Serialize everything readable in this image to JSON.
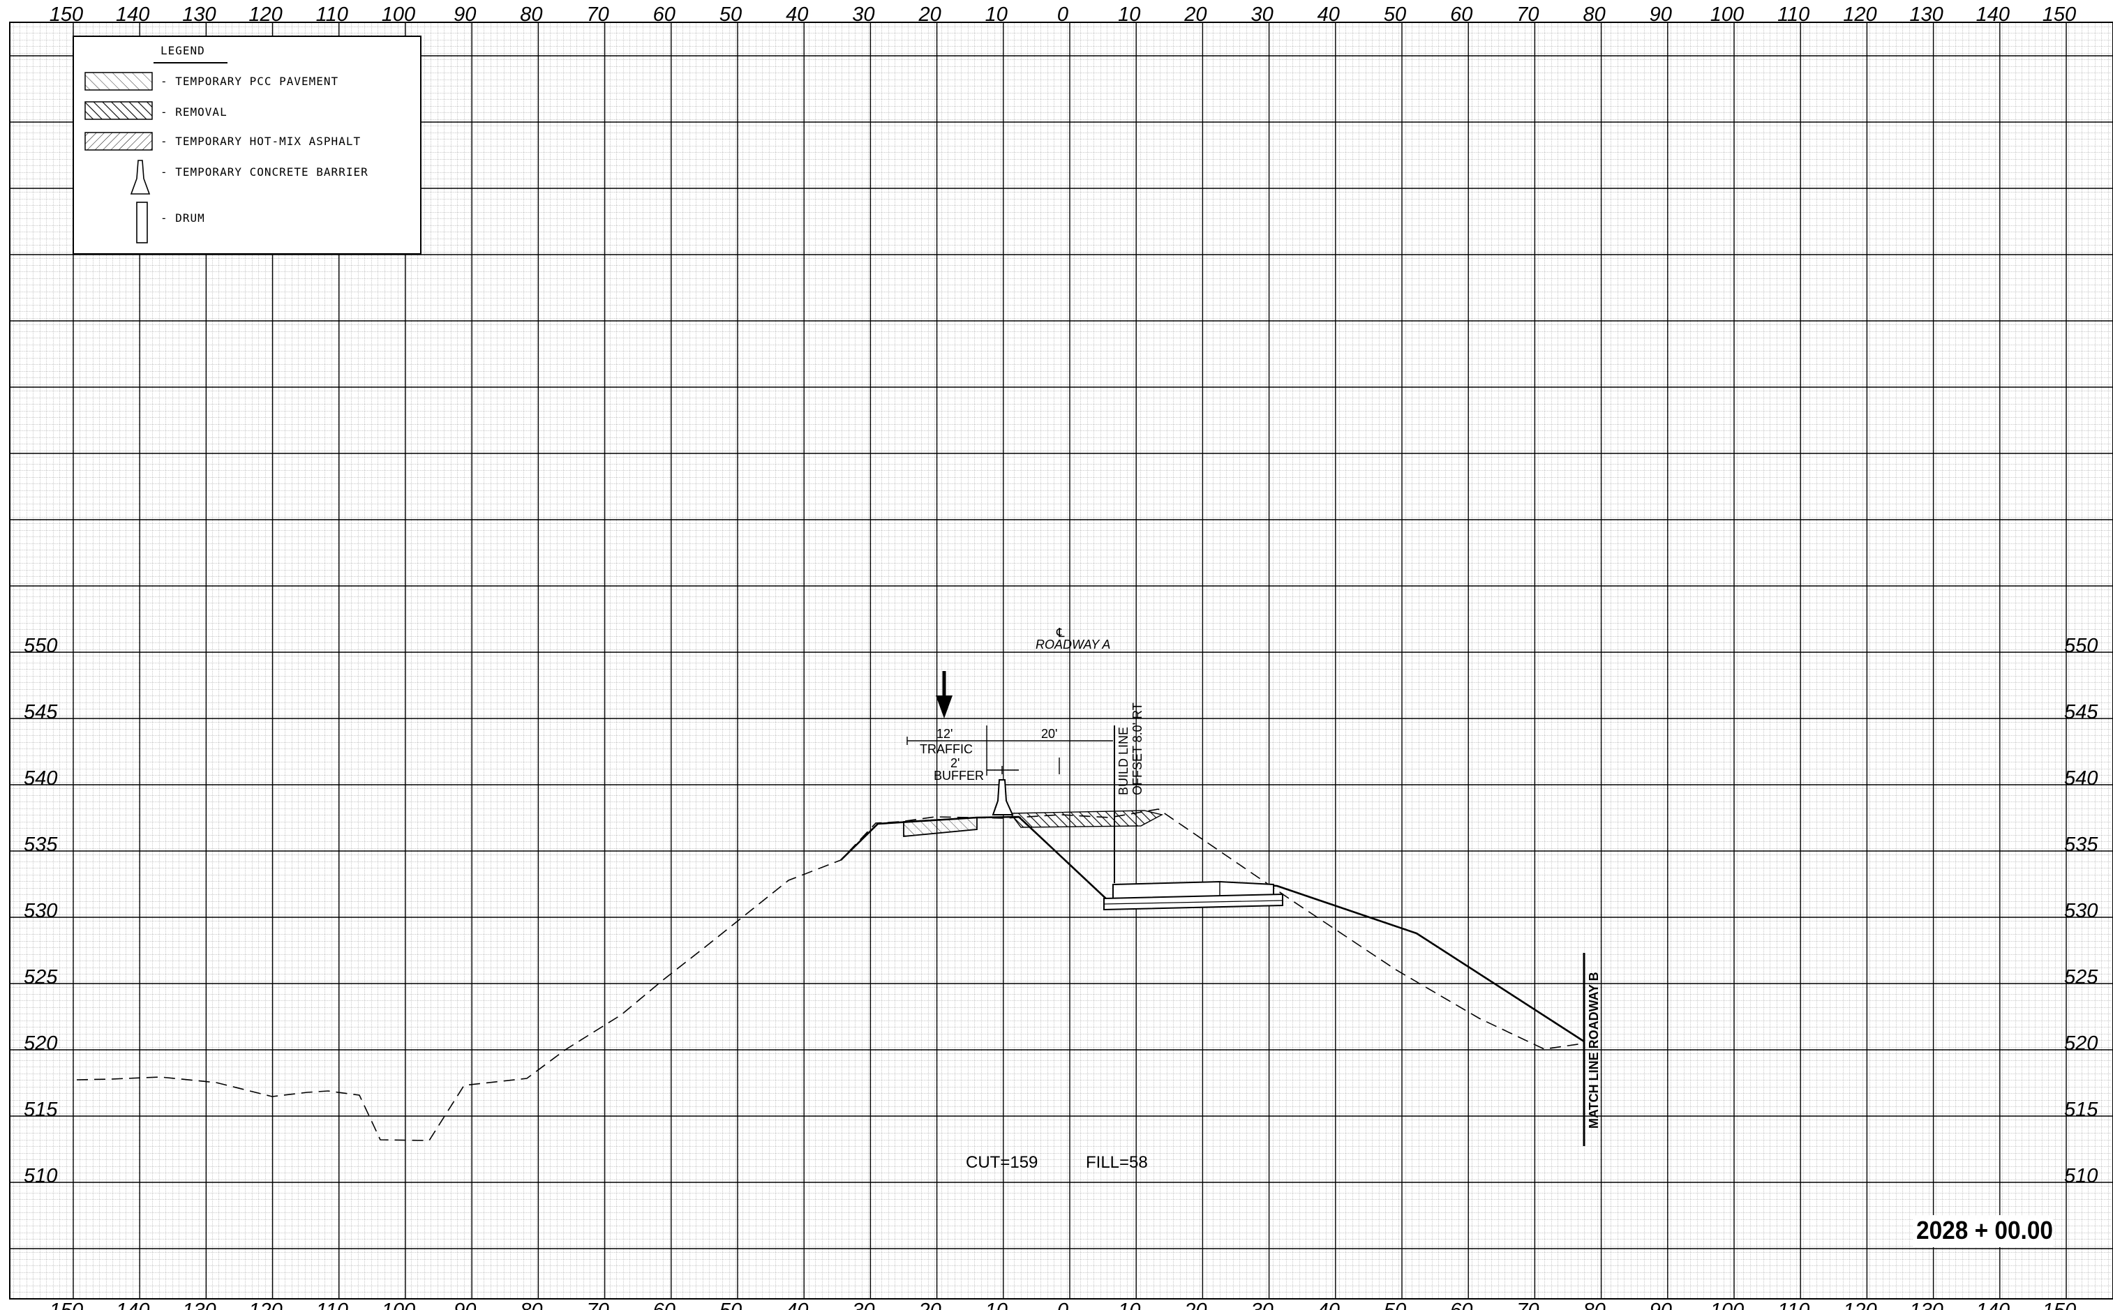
{
  "x_ticks": [
    "150",
    "140",
    "130",
    "120",
    "110",
    "100",
    "90",
    "80",
    "70",
    "60",
    "50",
    "40",
    "30",
    "20",
    "10",
    "0",
    "10",
    "20",
    "30",
    "40",
    "50",
    "60",
    "70",
    "80",
    "90",
    "100",
    "110",
    "120",
    "130",
    "140",
    "150"
  ],
  "y_ticks": [
    "550",
    "545",
    "540",
    "535",
    "530",
    "525",
    "520",
    "515",
    "510"
  ],
  "legend": {
    "title": "LEGEND",
    "items": [
      {
        "label": "- TEMPORARY PCC PAVEMENT",
        "symbol": "hatch-light-icon"
      },
      {
        "label": "- REMOVAL",
        "symbol": "hatch-heavy-icon"
      },
      {
        "label": "- TEMPORARY HOT-MIX ASPHALT",
        "symbol": "hatch-back-icon"
      },
      {
        "label": "- TEMPORARY CONCRETE BARRIER",
        "symbol": "barrier-icon"
      },
      {
        "label": "- DRUM",
        "symbol": "drum-icon"
      }
    ]
  },
  "annotations": {
    "centerline_symbol": "℄",
    "centerline_label": "ROADWAY A",
    "traffic_width": "12'",
    "traffic_label": "TRAFFIC",
    "buffer_width": "2'",
    "buffer_label": "BUFFER",
    "right_width": "20'",
    "build_line_1": "BUILD LINE",
    "build_line_2": "OFFSET 8.0' RT",
    "match_line": "MATCH LINE ROADWAY B",
    "cut": "CUT=159",
    "fill": "FILL=58",
    "station": "2028 + 00.00"
  },
  "colors": {
    "line": "#000000",
    "grid": "#000000",
    "background": "#ffffff"
  }
}
